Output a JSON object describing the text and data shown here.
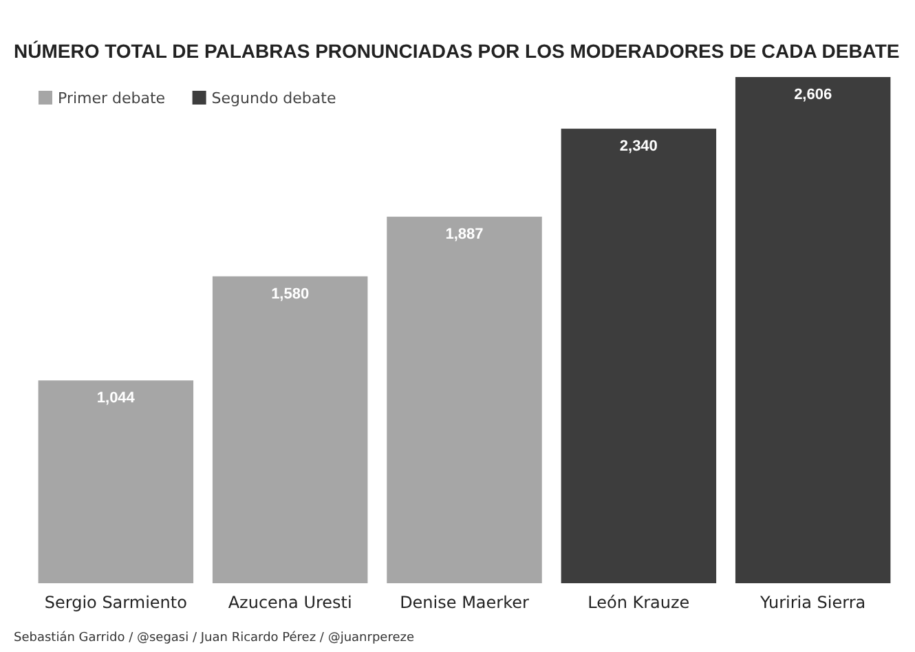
{
  "chart_data": {
    "type": "bar",
    "title": "NÚMERO TOTAL DE PALABRAS PRONUNCIADAS POR LOS MODERADORES DE CADA DEBATE",
    "categories": [
      "Sergio Sarmiento",
      "Azucena Uresti",
      "Denise Maerker",
      "León Krauze",
      "Yuriria Sierra"
    ],
    "series": [
      {
        "name": "Primer debate",
        "color": "#a6a6a6",
        "values": [
          1044,
          1580,
          1887,
          null,
          null
        ],
        "value_labels": [
          "1,044",
          "1,580",
          "1,887",
          null,
          null
        ]
      },
      {
        "name": "Segundo debate",
        "color": "#3d3d3d",
        "values": [
          null,
          null,
          null,
          2340,
          2606
        ],
        "value_labels": [
          null,
          null,
          null,
          "2,340",
          "2,606"
        ]
      }
    ],
    "stacked": true,
    "tick_labels": "x",
    "legend": "top left",
    "annotations": [
      "Sebastián Garrido / @segasi / Juan Ricardo Pérez / @juanrpereze"
    ]
  }
}
